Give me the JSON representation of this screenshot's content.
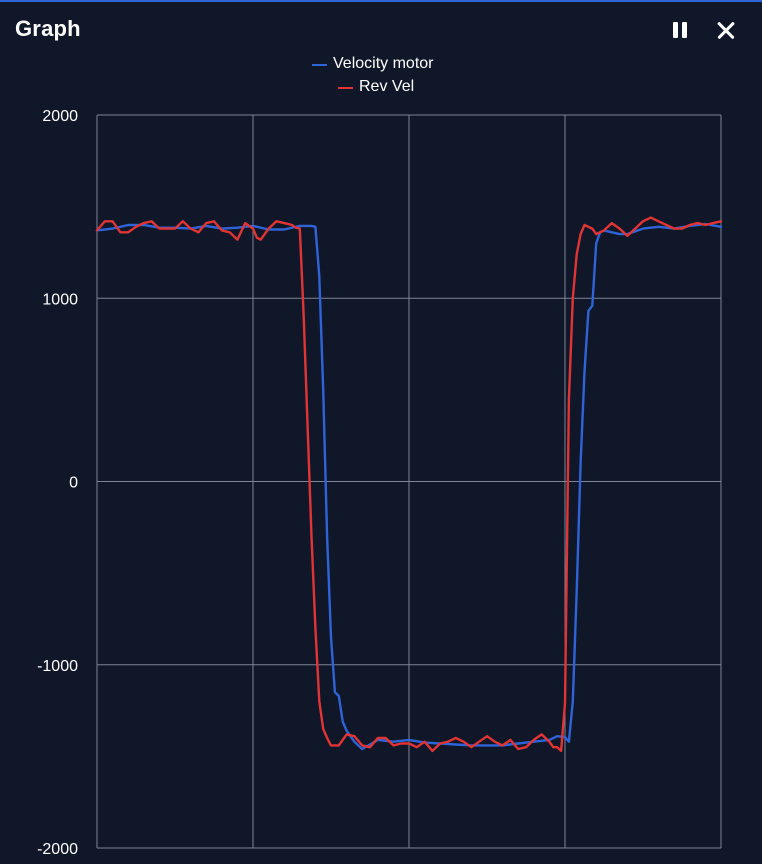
{
  "window": {
    "title": "Graph",
    "pause_icon": "pause-icon",
    "close_icon": "close-icon",
    "accent_color": "#2f63d6",
    "background_color": "#0f1729"
  },
  "chart_data": {
    "type": "line",
    "title": "",
    "xlabel": "",
    "ylabel": "",
    "ylim": [
      -2000,
      2000
    ],
    "y_ticks": [
      "2000",
      "1000",
      "0",
      "-1000",
      "-2000"
    ],
    "y_tick_values": [
      2000,
      1000,
      0,
      -1000,
      -2000
    ],
    "x_ticks_shown": false,
    "xlim": [
      0,
      160
    ],
    "x_gridlines": [
      0,
      40,
      80,
      120,
      160
    ],
    "grid": true,
    "legend_position": "top-center",
    "series": [
      {
        "name": "Velocity motor",
        "color": "#2f63d6",
        "points": [
          [
            0,
            1370
          ],
          [
            4,
            1380
          ],
          [
            8,
            1400
          ],
          [
            12,
            1400
          ],
          [
            16,
            1385
          ],
          [
            20,
            1385
          ],
          [
            24,
            1380
          ],
          [
            28,
            1395
          ],
          [
            32,
            1380
          ],
          [
            36,
            1385
          ],
          [
            40,
            1395
          ],
          [
            44,
            1375
          ],
          [
            48,
            1375
          ],
          [
            52,
            1395
          ],
          [
            55,
            1395
          ],
          [
            56,
            1390
          ],
          [
            57,
            1120
          ],
          [
            58,
            500
          ],
          [
            59,
            -300
          ],
          [
            60,
            -850
          ],
          [
            61,
            -1150
          ],
          [
            62,
            -1170
          ],
          [
            63,
            -1310
          ],
          [
            64,
            -1360
          ],
          [
            66,
            -1420
          ],
          [
            68,
            -1460
          ],
          [
            72,
            -1410
          ],
          [
            76,
            -1420
          ],
          [
            80,
            -1410
          ],
          [
            84,
            -1425
          ],
          [
            88,
            -1430
          ],
          [
            92,
            -1435
          ],
          [
            96,
            -1440
          ],
          [
            100,
            -1440
          ],
          [
            104,
            -1440
          ],
          [
            108,
            -1430
          ],
          [
            112,
            -1420
          ],
          [
            116,
            -1410
          ],
          [
            118,
            -1390
          ],
          [
            120,
            -1395
          ],
          [
            121,
            -1420
          ],
          [
            122,
            -1200
          ],
          [
            123,
            -600
          ],
          [
            124,
            100
          ],
          [
            125,
            600
          ],
          [
            126,
            930
          ],
          [
            127,
            960
          ],
          [
            128,
            1300
          ],
          [
            129,
            1360
          ],
          [
            130,
            1370
          ],
          [
            132,
            1360
          ],
          [
            134,
            1350
          ],
          [
            136,
            1350
          ],
          [
            140,
            1380
          ],
          [
            144,
            1390
          ],
          [
            148,
            1380
          ],
          [
            152,
            1395
          ],
          [
            156,
            1405
          ],
          [
            160,
            1390
          ]
        ]
      },
      {
        "name": "Rev Vel",
        "color": "#e13434",
        "points": [
          [
            0,
            1370
          ],
          [
            2,
            1420
          ],
          [
            4,
            1420
          ],
          [
            6,
            1360
          ],
          [
            8,
            1360
          ],
          [
            10,
            1390
          ],
          [
            12,
            1410
          ],
          [
            14,
            1420
          ],
          [
            16,
            1380
          ],
          [
            18,
            1380
          ],
          [
            20,
            1380
          ],
          [
            22,
            1420
          ],
          [
            24,
            1380
          ],
          [
            26,
            1360
          ],
          [
            28,
            1410
          ],
          [
            30,
            1420
          ],
          [
            32,
            1370
          ],
          [
            34,
            1360
          ],
          [
            36,
            1320
          ],
          [
            38,
            1410
          ],
          [
            40,
            1380
          ],
          [
            41,
            1330
          ],
          [
            42,
            1320
          ],
          [
            44,
            1380
          ],
          [
            46,
            1420
          ],
          [
            48,
            1410
          ],
          [
            50,
            1400
          ],
          [
            51,
            1385
          ],
          [
            52,
            1380
          ],
          [
            53,
            900
          ],
          [
            54,
            300
          ],
          [
            55,
            -300
          ],
          [
            56,
            -800
          ],
          [
            57,
            -1200
          ],
          [
            58,
            -1350
          ],
          [
            59,
            -1400
          ],
          [
            60,
            -1440
          ],
          [
            62,
            -1440
          ],
          [
            64,
            -1380
          ],
          [
            66,
            -1390
          ],
          [
            68,
            -1440
          ],
          [
            70,
            -1450
          ],
          [
            72,
            -1400
          ],
          [
            74,
            -1400
          ],
          [
            76,
            -1440
          ],
          [
            78,
            -1430
          ],
          [
            80,
            -1430
          ],
          [
            82,
            -1450
          ],
          [
            84,
            -1420
          ],
          [
            86,
            -1470
          ],
          [
            88,
            -1430
          ],
          [
            90,
            -1420
          ],
          [
            92,
            -1400
          ],
          [
            94,
            -1420
          ],
          [
            96,
            -1450
          ],
          [
            98,
            -1420
          ],
          [
            100,
            -1390
          ],
          [
            102,
            -1420
          ],
          [
            104,
            -1440
          ],
          [
            106,
            -1410
          ],
          [
            108,
            -1460
          ],
          [
            110,
            -1450
          ],
          [
            112,
            -1410
          ],
          [
            114,
            -1380
          ],
          [
            116,
            -1420
          ],
          [
            117,
            -1450
          ],
          [
            118,
            -1450
          ],
          [
            119,
            -1470
          ],
          [
            120,
            -1210
          ],
          [
            121,
            450
          ],
          [
            122,
            1000
          ],
          [
            123,
            1240
          ],
          [
            124,
            1350
          ],
          [
            125,
            1400
          ],
          [
            127,
            1380
          ],
          [
            128,
            1350
          ],
          [
            130,
            1370
          ],
          [
            132,
            1410
          ],
          [
            134,
            1380
          ],
          [
            136,
            1340
          ],
          [
            138,
            1380
          ],
          [
            140,
            1420
          ],
          [
            142,
            1440
          ],
          [
            144,
            1420
          ],
          [
            146,
            1400
          ],
          [
            148,
            1380
          ],
          [
            150,
            1380
          ],
          [
            152,
            1400
          ],
          [
            154,
            1410
          ],
          [
            156,
            1400
          ],
          [
            158,
            1410
          ],
          [
            160,
            1420
          ]
        ]
      }
    ]
  }
}
